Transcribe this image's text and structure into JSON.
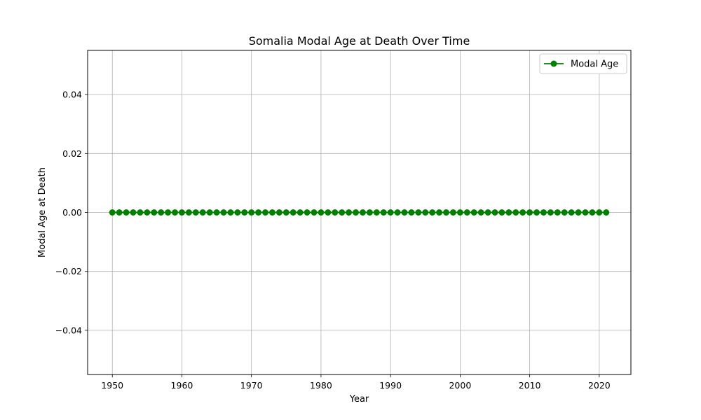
{
  "chart_data": {
    "type": "line",
    "title": "Somalia Modal Age at Death Over Time",
    "xlabel": "Year",
    "ylabel": "Modal Age at Death",
    "xlim": [
      1946.45,
      2024.55
    ],
    "ylim": [
      -0.055,
      0.055
    ],
    "x_ticks": [
      1950,
      1960,
      1970,
      1980,
      1990,
      2000,
      2010,
      2020
    ],
    "y_ticks": [
      -0.04,
      -0.02,
      0.0,
      0.02,
      0.04
    ],
    "y_tick_labels": [
      "−0.04",
      "−0.02",
      "0.00",
      "0.02",
      "0.04"
    ],
    "grid": true,
    "legend_position": "top-right",
    "series": [
      {
        "name": "Modal Age",
        "color": "#008000",
        "marker": "circle",
        "x": [
          1950,
          1951,
          1952,
          1953,
          1954,
          1955,
          1956,
          1957,
          1958,
          1959,
          1960,
          1961,
          1962,
          1963,
          1964,
          1965,
          1966,
          1967,
          1968,
          1969,
          1970,
          1971,
          1972,
          1973,
          1974,
          1975,
          1976,
          1977,
          1978,
          1979,
          1980,
          1981,
          1982,
          1983,
          1984,
          1985,
          1986,
          1987,
          1988,
          1989,
          1990,
          1991,
          1992,
          1993,
          1994,
          1995,
          1996,
          1997,
          1998,
          1999,
          2000,
          2001,
          2002,
          2003,
          2004,
          2005,
          2006,
          2007,
          2008,
          2009,
          2010,
          2011,
          2012,
          2013,
          2014,
          2015,
          2016,
          2017,
          2018,
          2019,
          2020,
          2021
        ],
        "y": [
          0,
          0,
          0,
          0,
          0,
          0,
          0,
          0,
          0,
          0,
          0,
          0,
          0,
          0,
          0,
          0,
          0,
          0,
          0,
          0,
          0,
          0,
          0,
          0,
          0,
          0,
          0,
          0,
          0,
          0,
          0,
          0,
          0,
          0,
          0,
          0,
          0,
          0,
          0,
          0,
          0,
          0,
          0,
          0,
          0,
          0,
          0,
          0,
          0,
          0,
          0,
          0,
          0,
          0,
          0,
          0,
          0,
          0,
          0,
          0,
          0,
          0,
          0,
          0,
          0,
          0,
          0,
          0,
          0,
          0,
          0,
          0
        ]
      }
    ]
  }
}
